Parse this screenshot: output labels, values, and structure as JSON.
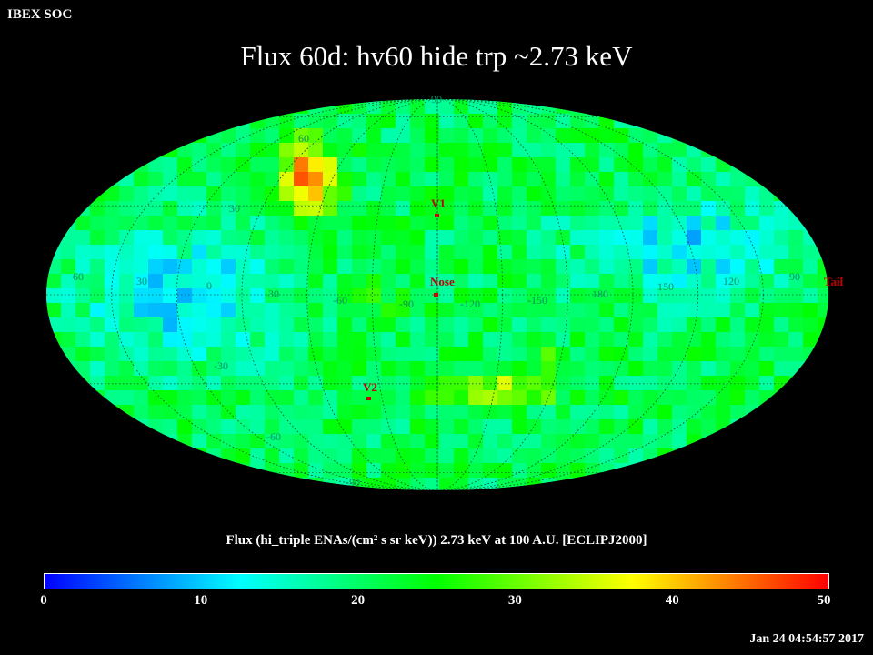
{
  "header": {
    "label": "IBEX SOC"
  },
  "map": {
    "title": "Flux   60d: hv60 hide trp ~2.73 keV",
    "projection": "Mollweide",
    "latitude_labels": [
      "90",
      "60",
      "30",
      "0",
      "-30",
      "-60",
      "-90"
    ],
    "longitude_labels": [
      "60",
      "30",
      "0",
      "-30",
      "-60",
      "-90",
      "-120",
      "-150",
      "180",
      "150",
      "120",
      "90"
    ],
    "markers": [
      {
        "label": "V1"
      },
      {
        "label": "Nose"
      },
      {
        "label": "V2"
      },
      {
        "label": "Tail"
      }
    ]
  },
  "colorbar": {
    "title": "Flux (hi_triple ENAs/(cm² s sr keV))  2.73 keV at 100 A.U. [ECLIPJ2000]",
    "ticks": [
      "0",
      "10",
      "20",
      "30",
      "40",
      "50"
    ],
    "min": 0,
    "max": 50,
    "colors": [
      "#0000ff",
      "#00ffff",
      "#00ff00",
      "#ffff00",
      "#ff0000"
    ]
  },
  "footer": {
    "timestamp": "Jan 24 04:54:57 2017"
  }
}
